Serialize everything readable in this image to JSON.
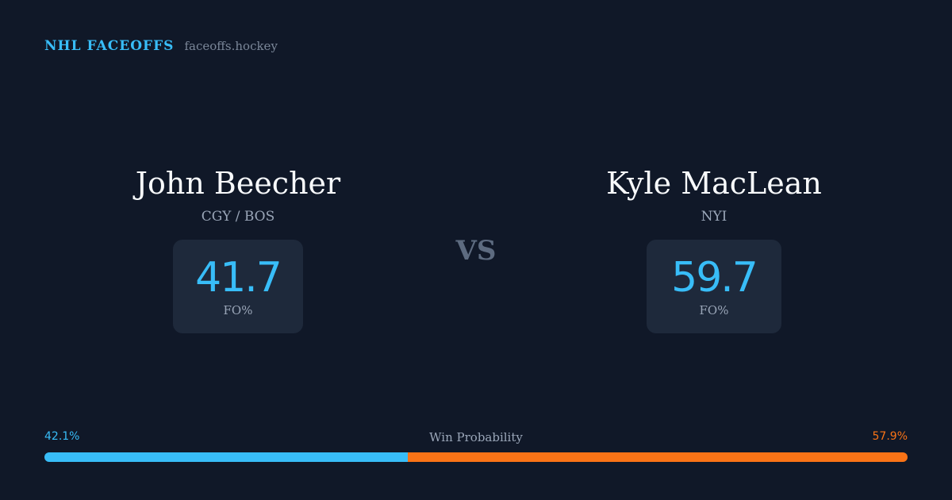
{
  "brand": {
    "name": "NHL FACEOFFS",
    "site": "faceoffs.hockey"
  },
  "players": [
    {
      "name": "John Beecher",
      "team": "CGY / BOS",
      "fo_pct": "41.7",
      "fo_label": "FO%"
    },
    {
      "name": "Kyle MacLean",
      "team": "NYI",
      "fo_pct": "59.7",
      "fo_label": "FO%"
    }
  ],
  "vs_label": "VS",
  "win_probability": {
    "title": "Win Probability",
    "left_label": "42.1%",
    "right_label": "57.9%",
    "left_value": 42.1,
    "right_value": 57.9
  },
  "colors": {
    "background": "#101828",
    "accent": "#38bdf8",
    "opponent": "#f97316",
    "card": "#1e293b"
  }
}
